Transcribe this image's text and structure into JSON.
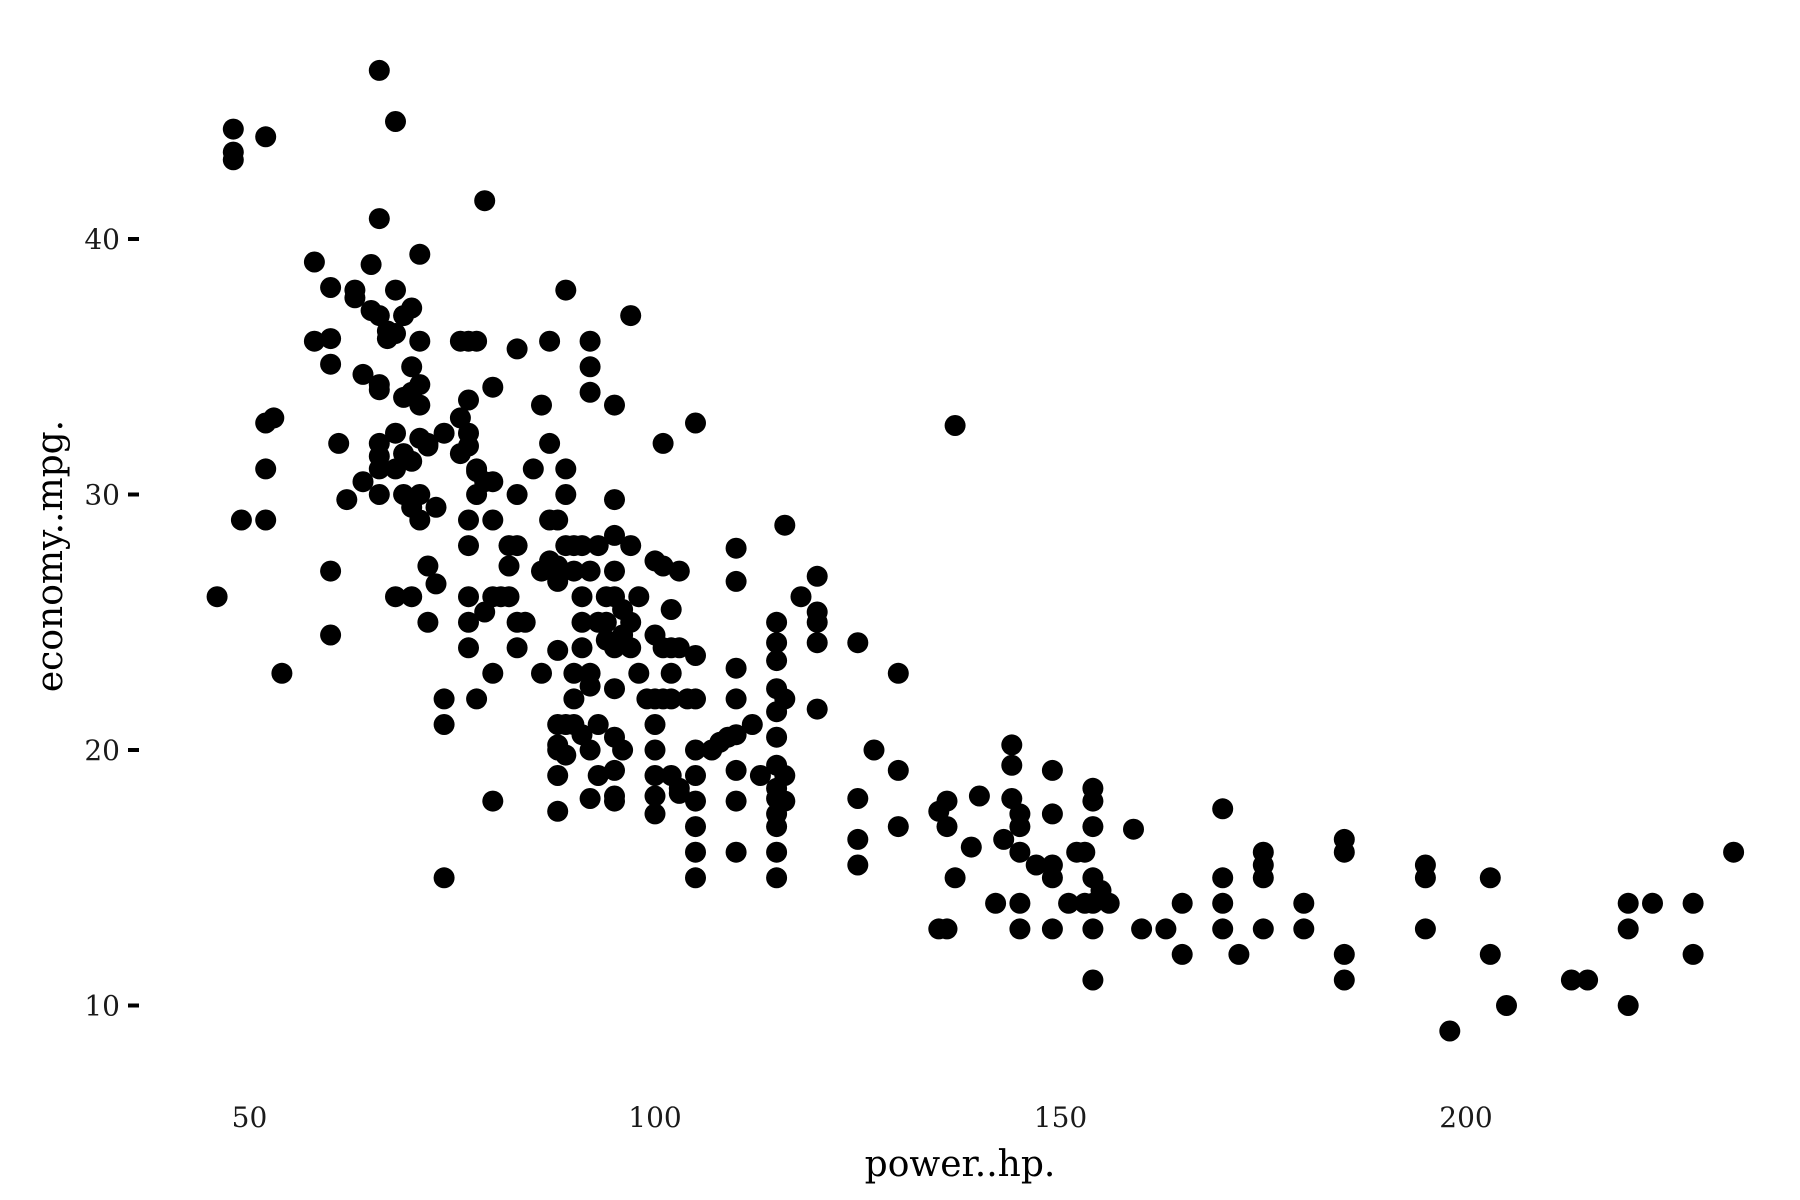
{
  "chart_data": {
    "type": "scatter",
    "xlabel": "power..hp.",
    "ylabel": "economy..mpg.",
    "xlim": [
      42,
      232
    ],
    "ylim": [
      7.6,
      47.5
    ],
    "xticks": [
      50,
      100,
      150,
      200
    ],
    "yticks": [
      10,
      20,
      30,
      40
    ],
    "grid": false,
    "legend": "none",
    "point_color": "#000000",
    "points": [
      [
        46,
        26
      ],
      [
        48,
        44.3
      ],
      [
        48,
        43.4
      ],
      [
        48,
        43.1
      ],
      [
        49,
        29
      ],
      [
        52,
        44
      ],
      [
        52,
        32.8
      ],
      [
        52,
        31
      ],
      [
        52,
        29
      ],
      [
        53,
        33
      ],
      [
        54,
        23
      ],
      [
        58,
        39.1
      ],
      [
        58,
        36
      ],
      [
        60,
        38.1
      ],
      [
        60,
        36.1
      ],
      [
        60,
        35.1
      ],
      [
        60,
        27
      ],
      [
        60,
        24.5
      ],
      [
        61,
        32
      ],
      [
        62,
        29.8
      ],
      [
        63,
        37.7
      ],
      [
        63,
        38
      ],
      [
        64,
        34.7
      ],
      [
        64,
        30.5
      ],
      [
        65,
        39
      ],
      [
        65,
        37.2
      ],
      [
        66,
        46.6
      ],
      [
        66,
        40.8
      ],
      [
        66,
        37
      ],
      [
        66,
        34.3
      ],
      [
        66,
        34.1
      ],
      [
        66,
        32
      ],
      [
        66,
        31.5
      ],
      [
        66,
        31
      ],
      [
        66,
        30
      ],
      [
        67,
        36.1
      ],
      [
        67,
        36.4
      ],
      [
        68,
        44.6
      ],
      [
        68,
        38
      ],
      [
        68,
        36.3
      ],
      [
        68,
        32.4
      ],
      [
        68,
        31
      ],
      [
        68,
        26
      ],
      [
        69,
        37
      ],
      [
        69,
        33.8
      ],
      [
        69,
        31.6
      ],
      [
        69,
        30
      ],
      [
        70,
        37.3
      ],
      [
        70,
        35
      ],
      [
        70,
        34
      ],
      [
        70,
        31.3
      ],
      [
        70,
        29.5
      ],
      [
        70,
        26
      ],
      [
        71,
        39.4
      ],
      [
        71,
        36
      ],
      [
        71,
        34.3
      ],
      [
        71,
        33.5
      ],
      [
        71,
        32.2
      ],
      [
        71,
        30
      ],
      [
        71,
        29
      ],
      [
        72,
        31.9
      ],
      [
        72,
        27.2
      ],
      [
        72,
        25
      ],
      [
        72,
        32
      ],
      [
        73,
        29.5
      ],
      [
        73,
        26.5
      ],
      [
        74,
        32.4
      ],
      [
        74,
        22
      ],
      [
        74,
        21
      ],
      [
        74,
        15
      ],
      [
        76,
        33
      ],
      [
        76,
        31.6
      ],
      [
        76,
        36
      ],
      [
        77,
        36
      ],
      [
        77,
        33.7
      ],
      [
        77,
        32.4
      ],
      [
        77,
        31.9
      ],
      [
        77,
        29
      ],
      [
        77,
        28
      ],
      [
        77,
        26
      ],
      [
        77,
        25
      ],
      [
        77,
        24
      ],
      [
        78,
        30.9
      ],
      [
        78,
        36
      ],
      [
        78,
        31
      ],
      [
        78,
        30
      ],
      [
        78,
        22
      ],
      [
        79,
        41.5
      ],
      [
        79,
        30.5
      ],
      [
        79,
        25.4
      ],
      [
        80,
        34.2
      ],
      [
        80,
        30.5
      ],
      [
        80,
        29
      ],
      [
        80,
        26
      ],
      [
        80,
        23
      ],
      [
        80,
        18
      ],
      [
        81,
        26
      ],
      [
        82,
        28
      ],
      [
        82,
        27.2
      ],
      [
        82,
        26
      ],
      [
        83,
        25
      ],
      [
        83,
        24
      ],
      [
        83,
        35.7
      ],
      [
        83,
        30
      ],
      [
        83,
        28
      ],
      [
        84,
        25
      ],
      [
        85,
        31
      ],
      [
        86,
        27
      ],
      [
        86,
        33.5
      ],
      [
        86,
        23
      ],
      [
        87,
        27.4
      ],
      [
        87,
        36
      ],
      [
        87,
        32
      ],
      [
        87,
        29
      ],
      [
        88,
        27.2
      ],
      [
        88,
        26.6
      ],
      [
        88,
        23.9
      ],
      [
        88,
        29
      ],
      [
        88,
        21
      ],
      [
        88,
        20.2
      ],
      [
        88,
        20
      ],
      [
        88,
        19
      ],
      [
        88,
        17.6
      ],
      [
        89,
        38
      ],
      [
        89,
        31
      ],
      [
        89,
        28
      ],
      [
        89,
        30
      ],
      [
        89,
        21
      ],
      [
        89,
        19.8
      ],
      [
        90,
        28
      ],
      [
        90,
        27
      ],
      [
        90,
        23
      ],
      [
        90,
        22
      ],
      [
        90,
        21
      ],
      [
        91,
        28
      ],
      [
        91,
        26
      ],
      [
        91,
        24
      ],
      [
        91,
        20.6
      ],
      [
        91,
        25
      ],
      [
        92,
        23
      ],
      [
        92,
        22.5
      ],
      [
        92,
        20
      ],
      [
        92,
        18.1
      ],
      [
        92,
        27
      ],
      [
        92,
        36
      ],
      [
        92,
        35
      ],
      [
        92,
        34
      ],
      [
        93,
        25
      ],
      [
        93,
        28
      ],
      [
        93,
        21
      ],
      [
        93,
        19
      ],
      [
        94,
        25
      ],
      [
        94,
        24.3
      ],
      [
        94,
        26
      ],
      [
        95,
        28.4
      ],
      [
        95,
        29.8
      ],
      [
        95,
        33.5
      ],
      [
        95,
        27
      ],
      [
        95,
        26
      ],
      [
        95,
        24
      ],
      [
        95,
        22.4
      ],
      [
        95,
        20.5
      ],
      [
        95,
        18.2
      ],
      [
        95,
        19.2
      ],
      [
        95,
        18
      ],
      [
        96,
        20
      ],
      [
        96,
        24.5
      ],
      [
        96,
        25.5
      ],
      [
        97,
        28
      ],
      [
        97,
        37
      ],
      [
        97,
        25
      ],
      [
        97,
        24
      ],
      [
        98,
        26
      ],
      [
        98,
        23
      ],
      [
        99,
        22
      ],
      [
        100,
        27.4
      ],
      [
        100,
        24.5
      ],
      [
        100,
        22
      ],
      [
        100,
        21
      ],
      [
        100,
        20
      ],
      [
        100,
        19
      ],
      [
        100,
        18.2
      ],
      [
        100,
        17.5
      ],
      [
        101,
        24
      ],
      [
        101,
        22
      ],
      [
        101,
        27.2
      ],
      [
        101,
        32
      ],
      [
        102,
        25.5
      ],
      [
        102,
        24
      ],
      [
        102,
        23
      ],
      [
        102,
        22
      ],
      [
        102,
        19
      ],
      [
        103,
        18.3
      ],
      [
        103,
        18.5
      ],
      [
        103,
        24
      ],
      [
        103,
        27
      ],
      [
        104,
        22
      ],
      [
        105,
        22
      ],
      [
        105,
        23.7
      ],
      [
        105,
        20
      ],
      [
        105,
        18
      ],
      [
        105,
        17
      ],
      [
        105,
        16
      ],
      [
        105,
        15
      ],
      [
        105,
        19
      ],
      [
        105,
        32.8
      ],
      [
        107,
        20
      ],
      [
        108,
        20.3
      ],
      [
        109,
        20.5
      ],
      [
        110,
        23.2
      ],
      [
        110,
        22
      ],
      [
        110,
        20.6
      ],
      [
        110,
        19.2
      ],
      [
        110,
        18
      ],
      [
        110,
        16
      ],
      [
        110,
        27.9
      ],
      [
        110,
        26.6
      ],
      [
        112,
        21
      ],
      [
        113,
        19
      ],
      [
        115,
        22.4
      ],
      [
        115,
        25
      ],
      [
        115,
        24.2
      ],
      [
        115,
        23.5
      ],
      [
        115,
        21.5
      ],
      [
        115,
        20.5
      ],
      [
        115,
        19.4
      ],
      [
        115,
        18.5
      ],
      [
        115,
        18.1
      ],
      [
        115,
        17.5
      ],
      [
        115,
        17
      ],
      [
        115,
        16
      ],
      [
        115,
        15
      ],
      [
        116,
        22
      ],
      [
        116,
        19
      ],
      [
        116,
        18
      ],
      [
        116,
        28.8
      ],
      [
        118,
        26
      ],
      [
        120,
        25
      ],
      [
        120,
        26.8
      ],
      [
        120,
        25.4
      ],
      [
        120,
        21.6
      ],
      [
        120,
        24.2
      ],
      [
        125,
        18.1
      ],
      [
        125,
        16.5
      ],
      [
        125,
        15.5
      ],
      [
        125,
        24.2
      ],
      [
        127,
        20
      ],
      [
        130,
        23
      ],
      [
        130,
        19.2
      ],
      [
        130,
        17
      ],
      [
        135,
        17.6
      ],
      [
        135,
        13
      ],
      [
        136,
        13
      ],
      [
        136,
        18
      ],
      [
        136,
        17
      ],
      [
        137,
        15
      ],
      [
        137,
        32.7
      ],
      [
        139,
        16.2
      ],
      [
        140,
        18.2
      ],
      [
        142,
        14
      ],
      [
        143,
        16.5
      ],
      [
        144,
        20.2
      ],
      [
        144,
        18.1
      ],
      [
        144,
        19.4
      ],
      [
        145,
        17.5
      ],
      [
        145,
        17
      ],
      [
        145,
        16
      ],
      [
        145,
        14
      ],
      [
        145,
        13
      ],
      [
        147,
        15.5
      ],
      [
        149,
        19.2
      ],
      [
        149,
        17.5
      ],
      [
        149,
        15.5
      ],
      [
        149,
        15
      ],
      [
        149,
        13
      ],
      [
        151,
        14
      ],
      [
        152,
        16
      ],
      [
        153,
        16
      ],
      [
        153,
        14
      ],
      [
        154,
        18.5
      ],
      [
        154,
        18
      ],
      [
        154,
        17
      ],
      [
        154,
        15
      ],
      [
        154,
        14
      ],
      [
        154,
        13
      ],
      [
        154,
        11
      ],
      [
        155,
        14.5
      ],
      [
        156,
        14
      ],
      [
        159,
        16.9
      ],
      [
        160,
        13
      ],
      [
        163,
        13
      ],
      [
        165,
        14
      ],
      [
        165,
        12
      ],
      [
        170,
        17.7
      ],
      [
        170,
        15
      ],
      [
        170,
        14
      ],
      [
        170,
        13
      ],
      [
        172,
        12
      ],
      [
        175,
        16
      ],
      [
        175,
        15.5
      ],
      [
        175,
        15
      ],
      [
        175,
        13
      ],
      [
        180,
        14
      ],
      [
        180,
        13
      ],
      [
        185,
        16.5
      ],
      [
        185,
        16
      ],
      [
        185,
        12
      ],
      [
        185,
        11
      ],
      [
        195,
        15.5
      ],
      [
        195,
        15
      ],
      [
        195,
        13
      ],
      [
        198,
        9
      ],
      [
        203,
        15
      ],
      [
        203,
        12
      ],
      [
        205,
        10
      ],
      [
        213,
        11
      ],
      [
        215,
        11
      ],
      [
        220,
        14
      ],
      [
        220,
        13
      ],
      [
        220,
        10
      ],
      [
        223,
        14
      ],
      [
        228,
        14
      ],
      [
        228,
        12
      ],
      [
        233,
        16
      ]
    ]
  }
}
